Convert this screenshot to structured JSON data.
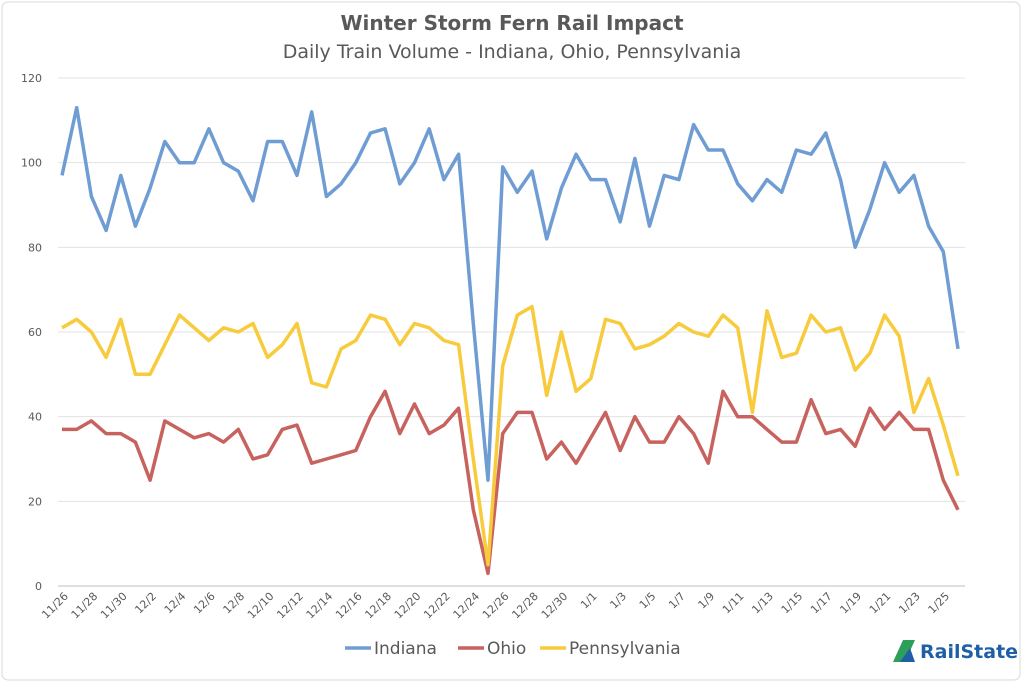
{
  "chart_data": {
    "type": "line",
    "title": "Winter Storm Fern Rail Impact",
    "subtitle": "Daily Train Volume - Indiana, Ohio, Pennsylvania",
    "categories": [
      "11/26",
      null,
      "11/28",
      null,
      "11/30",
      null,
      "12/2",
      null,
      "12/4",
      null,
      "12/6",
      null,
      "12/8",
      null,
      "12/10",
      null,
      "12/12",
      null,
      "12/14",
      null,
      "12/16",
      null,
      "12/18",
      null,
      "12/20",
      null,
      "12/22",
      null,
      "12/24",
      null,
      "12/26",
      null,
      "12/28",
      null,
      "12/30",
      null,
      "1/1",
      null,
      "1/3",
      null,
      "1/5",
      null,
      "1/7",
      null,
      "1/9",
      null,
      "1/11",
      null,
      "1/13",
      null,
      "1/15",
      null,
      "1/17",
      null,
      "1/19",
      null,
      "1/21",
      null,
      "1/23",
      null,
      "1/25",
      null
    ],
    "series": [
      {
        "name": "Indiana",
        "color": "#6f9dd3",
        "values": [
          97,
          113,
          92,
          84,
          97,
          85,
          94,
          105,
          100,
          100,
          108,
          100,
          98,
          91,
          105,
          105,
          97,
          112,
          92,
          95,
          100,
          107,
          108,
          95,
          100,
          108,
          96,
          102,
          62,
          25,
          99,
          93,
          98,
          82,
          94,
          102,
          96,
          96,
          86,
          101,
          85,
          97,
          96,
          109,
          103,
          103,
          95,
          91,
          96,
          93,
          103,
          102,
          107,
          96,
          80,
          89,
          100,
          93,
          97,
          85,
          79,
          56
        ]
      },
      {
        "name": "Ohio",
        "color": "#c8625e",
        "values": [
          37,
          37,
          39,
          36,
          36,
          34,
          25,
          39,
          37,
          35,
          36,
          34,
          37,
          30,
          31,
          37,
          38,
          29,
          30,
          31,
          32,
          40,
          46,
          36,
          43,
          36,
          38,
          42,
          18,
          3,
          36,
          41,
          41,
          30,
          34,
          29,
          35,
          41,
          32,
          40,
          34,
          34,
          40,
          36,
          29,
          46,
          40,
          40,
          37,
          34,
          34,
          44,
          36,
          37,
          33,
          42,
          37,
          41,
          37,
          37,
          25,
          18
        ]
      },
      {
        "name": "Pennsylvania",
        "color": "#f7cb3c",
        "values": [
          61,
          63,
          60,
          54,
          63,
          50,
          50,
          57,
          64,
          61,
          58,
          61,
          60,
          62,
          54,
          57,
          62,
          48,
          47,
          56,
          58,
          64,
          63,
          57,
          62,
          61,
          58,
          57,
          30,
          5,
          52,
          64,
          66,
          45,
          60,
          46,
          49,
          63,
          62,
          56,
          57,
          59,
          62,
          60,
          59,
          64,
          61,
          41,
          65,
          54,
          55,
          64,
          60,
          61,
          51,
          55,
          64,
          59,
          41,
          49,
          38,
          26
        ]
      }
    ],
    "ylim": [
      0,
      120
    ],
    "yticks": [
      0,
      20,
      40,
      60,
      80,
      100,
      120
    ],
    "grid": true,
    "legend": "bottom",
    "logo": "RailState"
  }
}
